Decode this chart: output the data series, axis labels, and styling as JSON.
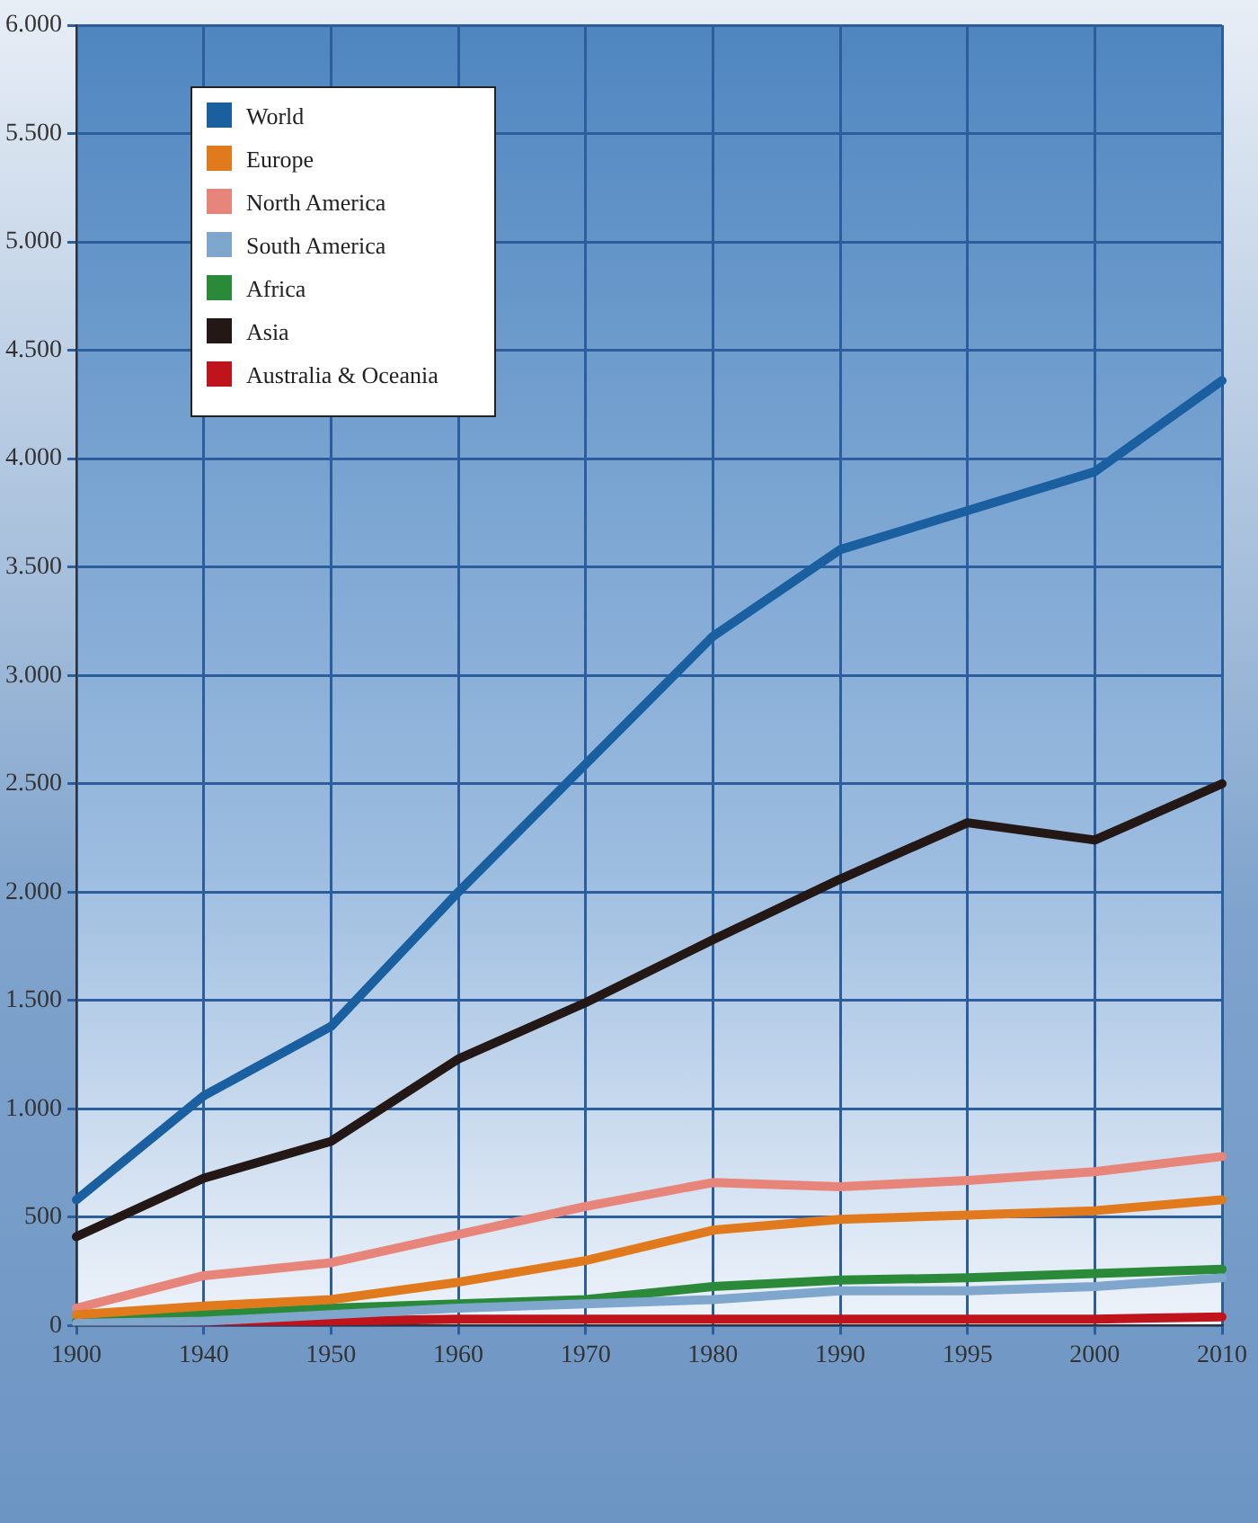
{
  "chart_data": {
    "type": "line",
    "categories": [
      "1900",
      "1940",
      "1950",
      "1960",
      "1970",
      "1980",
      "1990",
      "1995",
      "2000",
      "2010"
    ],
    "series": [
      {
        "name": "World",
        "color": "#1a5fa0",
        "values": [
          580,
          1060,
          1380,
          2000,
          2590,
          3180,
          3580,
          3760,
          3940,
          4360
        ]
      },
      {
        "name": "Europe",
        "color": "#e07a1c",
        "values": [
          50,
          90,
          120,
          200,
          300,
          440,
          490,
          510,
          530,
          580
        ]
      },
      {
        "name": "North America",
        "color": "#e8857a",
        "values": [
          80,
          230,
          290,
          420,
          550,
          660,
          640,
          670,
          710,
          780
        ]
      },
      {
        "name": "South America",
        "color": "#7fa6cc",
        "values": [
          10,
          20,
          50,
          80,
          100,
          120,
          160,
          160,
          180,
          220
        ]
      },
      {
        "name": "Africa",
        "color": "#2a8a3a",
        "values": [
          20,
          50,
          80,
          100,
          120,
          180,
          210,
          220,
          240,
          260
        ]
      },
      {
        "name": "Asia",
        "color": "#231815",
        "values": [
          410,
          680,
          850,
          1230,
          1490,
          1780,
          2060,
          2320,
          2240,
          2500
        ]
      },
      {
        "name": "Australia & Oceania",
        "color": "#c0141c",
        "values": [
          10,
          10,
          20,
          30,
          30,
          30,
          30,
          30,
          30,
          40
        ]
      }
    ],
    "ylim": [
      0,
      6000
    ],
    "yticks": [
      0,
      500,
      {
        "value": 1000,
        "label": "1.000"
      },
      {
        "value": 1500,
        "label": "1.500"
      },
      {
        "value": 2000,
        "label": "2.000"
      },
      {
        "value": 2500,
        "label": "2.500"
      },
      {
        "value": 3000,
        "label": "3.000"
      },
      {
        "value": 3500,
        "label": "3.500"
      },
      {
        "value": 4000,
        "label": "4.000"
      },
      {
        "value": 4500,
        "label": "4.500"
      },
      {
        "value": 5000,
        "label": "5.000"
      },
      {
        "value": 5500,
        "label": "5.500"
      },
      {
        "value": 6000,
        "label": "6.000"
      }
    ],
    "grid": true,
    "legend": "top left",
    "marker": "none",
    "line_style": "solid"
  }
}
